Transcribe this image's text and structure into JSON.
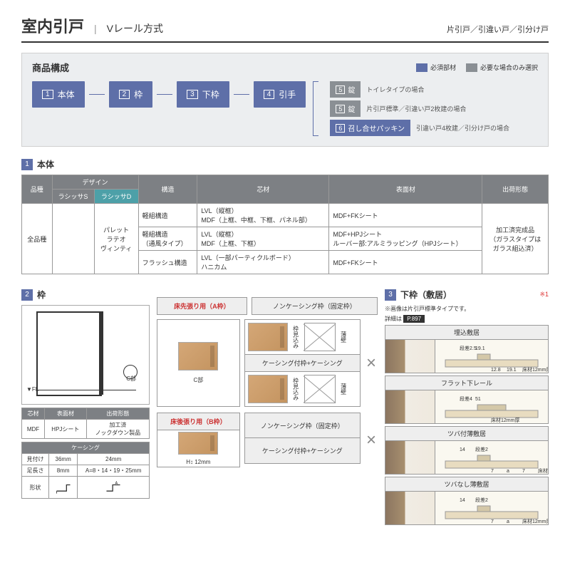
{
  "header": {
    "title": "室内引戸",
    "sub": "Vレール方式",
    "right": "片引戸／引違い戸／引分け戸"
  },
  "comp": {
    "title": "商品構成",
    "legend_required": "必須部材",
    "legend_optional": "必要な場合のみ選択",
    "flow": [
      {
        "n": "1",
        "t": "本体"
      },
      {
        "n": "2",
        "t": "枠"
      },
      {
        "n": "3",
        "t": "下枠"
      },
      {
        "n": "4",
        "t": "引手"
      }
    ],
    "right": [
      {
        "n": "5",
        "t": "錠",
        "bg": "gray",
        "label": "トイレタイプの場合"
      },
      {
        "n": "5",
        "t": "錠",
        "bg": "gray",
        "label": "片引戸標準／引違い戸2枚建の場合"
      },
      {
        "n": "6",
        "t": "召し合せパッキン",
        "bg": "blue",
        "label": "引違い戸4枚建／引分け戸の場合"
      }
    ]
  },
  "sec1": {
    "num": "1",
    "title": "本体",
    "head": [
      "品種",
      "デザイン",
      "",
      "構造",
      "芯材",
      "表面材",
      "出荷形態"
    ],
    "sub": [
      "",
      "ラシッサS",
      "ラシッサD",
      "",
      "",
      "",
      ""
    ],
    "rows": [
      [
        "全品種",
        "",
        "パレット\nラテオ\nヴィンティ",
        "軽組構造",
        "LVL（縦框）\nMDF（上框、中框、下框、パネル部）",
        "MDF+FKシート",
        "加工済完成品\n（ガラスタイプは\nガラス組込済）"
      ],
      [
        "",
        "",
        "",
        "軽組構造\n（通風タイプ）",
        "LVL（縦框）\nMDF（上框、下框）",
        "MDF+HPJシート\nルーバー部:アルミラッピング（HPJシート）",
        ""
      ],
      [
        "",
        "",
        "",
        "フラッシュ構造",
        "LVL（一部パーティクルボード）\nハニカム",
        "MDF+FKシート",
        ""
      ]
    ]
  },
  "sec2": {
    "num": "2",
    "title": "枠",
    "tbl_a": {
      "head": [
        "芯材",
        "表面材",
        "出荷形態"
      ],
      "row": [
        "MDF",
        "HPJシート",
        "加工済\nノックダウン製品"
      ]
    },
    "tbl_b": {
      "title": "ケーシング",
      "head": [
        "見付け",
        "36mm",
        "24mm"
      ],
      "rows": [
        [
          "足長さ",
          "8mm",
          "A=8・14・19・25mm"
        ]
      ],
      "shape": "形状"
    }
  },
  "mid": {
    "a_label": "床先張り用（A枠）",
    "b_label": "床後張り用（B枠）",
    "nc": "ノンケーシング枠（固定枠）",
    "kc": "ケーシング付枠+ケーシング",
    "c_label": "C部",
    "h_label": "H",
    "dim12": "12mm"
  },
  "sec3": {
    "num": "3",
    "title": "下枠（敷居）",
    "star": "※1",
    "note1": "※画像は片引戸標準タイプです。",
    "note2": "詳細は",
    "badge": "P.897",
    "items": [
      {
        "t": "埋込敷居",
        "dims": [
          "段差2.5",
          "19.1",
          "12.8",
          "19.1",
          "床材12mm厚"
        ]
      },
      {
        "t": "フラット下レール",
        "dims": [
          "段差4",
          "51",
          "床材12mm厚"
        ]
      },
      {
        "t": "ツバ付薄敷居",
        "dims": [
          "14",
          "段差2",
          "7",
          "a",
          "7",
          "床材12mm厚"
        ]
      },
      {
        "t": "ツバなし薄敷居",
        "dims": [
          "14",
          "段差2",
          "7",
          "a",
          "床材12mm厚"
        ]
      }
    ]
  },
  "colors": {
    "blue": "#5e6fa8",
    "gray": "#8a8f94",
    "teal": "#4da0a8",
    "hdr": "#7d8084"
  }
}
